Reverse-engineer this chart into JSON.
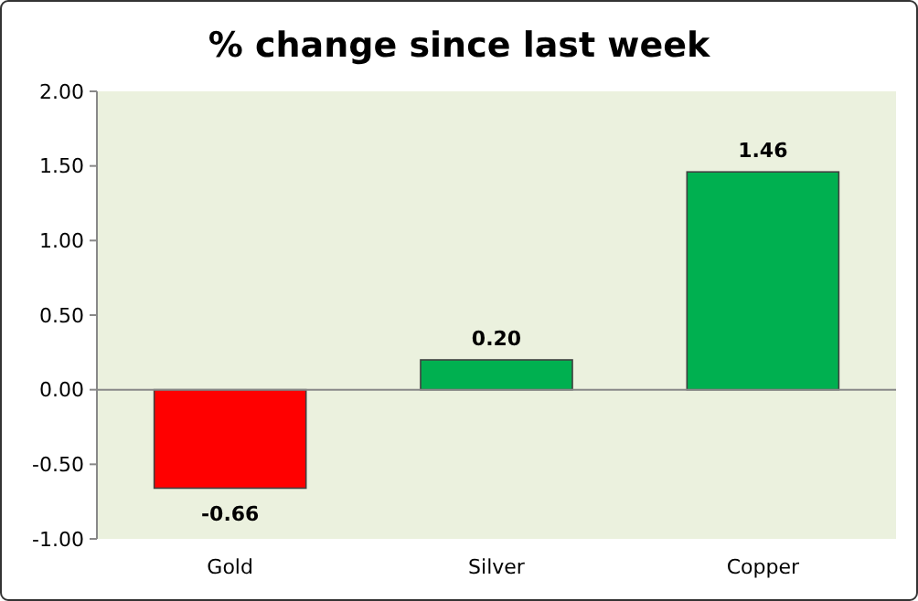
{
  "chart_data": {
    "type": "bar",
    "title": "% change since last week",
    "categories": [
      "Gold",
      "Silver",
      "Copper"
    ],
    "values": [
      -0.66,
      0.2,
      1.46
    ],
    "colors": [
      "#ff0000",
      "#00b050",
      "#00b050"
    ],
    "value_labels": [
      "-0.66",
      "0.20",
      "1.46"
    ],
    "ylim": [
      -1,
      2
    ],
    "yticks": [
      {
        "value": -1,
        "label": "-1.00"
      },
      {
        "value": -0.5,
        "label": "-0.50"
      },
      {
        "value": 0,
        "label": "0.00"
      },
      {
        "value": 0.5,
        "label": "0.50"
      },
      {
        "value": 1,
        "label": "1.00"
      },
      {
        "value": 1.5,
        "label": "1.50"
      },
      {
        "value": 2,
        "label": "2.00"
      }
    ]
  }
}
